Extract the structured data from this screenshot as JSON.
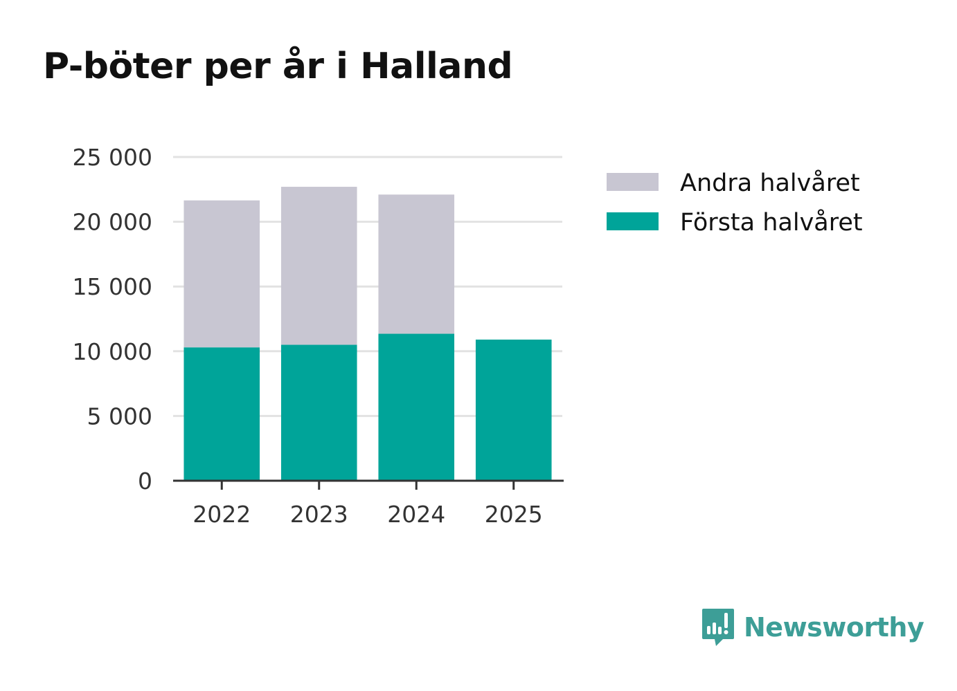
{
  "chart_data": {
    "type": "bar",
    "stacked": true,
    "title": "P-böter per år i Halland",
    "xlabel": "",
    "ylabel": "",
    "categories": [
      "2022",
      "2023",
      "2024",
      "2025"
    ],
    "series": [
      {
        "name": "Första halvåret",
        "color": "#00a499",
        "values": [
          10300,
          10500,
          11350,
          10900
        ]
      },
      {
        "name": "Andra halvåret",
        "color": "#c8c6d2",
        "values": [
          11350,
          12200,
          10750,
          0
        ]
      }
    ],
    "ylim": [
      0,
      25000
    ],
    "yticks": [
      0,
      5000,
      10000,
      15000,
      20000,
      25000
    ],
    "ytick_labels": [
      "0",
      "5 000",
      "10 000",
      "15 000",
      "20 000",
      "25 000"
    ],
    "legend_position": "right",
    "legend_order": [
      "Andra halvåret",
      "Första halvåret"
    ],
    "grid": true
  },
  "brand": {
    "name": "Newsworthy",
    "icon": "newsworthy-logo-icon",
    "color": "#3d9e97"
  },
  "colors": {
    "grid": "#e2e2e2",
    "axis": "#333333",
    "title": "#111111"
  }
}
